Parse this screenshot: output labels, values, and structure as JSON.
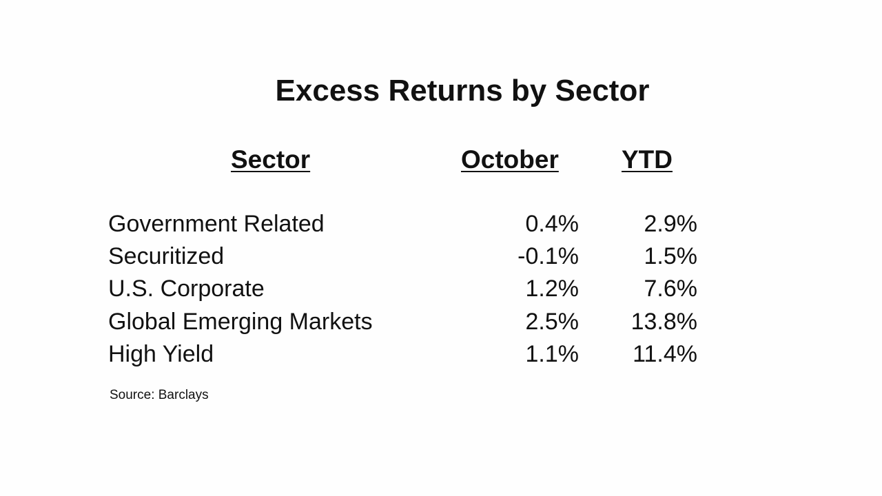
{
  "chart_data": {
    "type": "table",
    "title": "Excess Returns by Sector",
    "columns": [
      "Sector",
      "October",
      "YTD"
    ],
    "rows": [
      {
        "sector": "Government Related",
        "october": "0.4%",
        "ytd": "2.9%"
      },
      {
        "sector": "Securitized",
        "october": "-0.1%",
        "ytd": "1.5%"
      },
      {
        "sector": "U.S. Corporate",
        "october": "1.2%",
        "ytd": "7.6%"
      },
      {
        "sector": "Global Emerging Markets",
        "october": "2.5%",
        "ytd": "13.8%"
      },
      {
        "sector": "High Yield",
        "october": "1.1%",
        "ytd": "11.4%"
      }
    ],
    "source": "Source: Barclays"
  }
}
